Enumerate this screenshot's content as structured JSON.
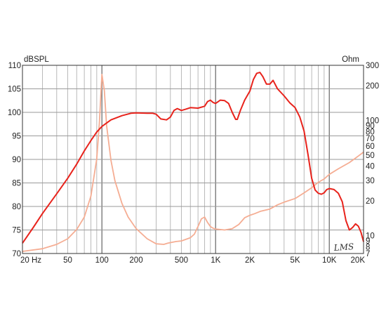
{
  "chart_data": {
    "type": "line",
    "x_scale": "log",
    "xlim": [
      20,
      20000
    ],
    "x_ticks": [
      {
        "value": 20,
        "label": "20  Hz"
      },
      {
        "value": 50,
        "label": "50"
      },
      {
        "value": 100,
        "label": "100"
      },
      {
        "value": 200,
        "label": "200"
      },
      {
        "value": 500,
        "label": "500"
      },
      {
        "value": 1000,
        "label": "1K"
      },
      {
        "value": 2000,
        "label": "2K"
      },
      {
        "value": 5000,
        "label": "5K"
      },
      {
        "value": 10000,
        "label": "10K"
      },
      {
        "value": 20000,
        "label": "20K"
      }
    ],
    "left_axis": {
      "unit_label": "dBSPL",
      "ylim": [
        70,
        110
      ],
      "ticks": [
        70,
        75,
        80,
        85,
        90,
        95,
        100,
        105,
        110
      ]
    },
    "right_axis": {
      "unit_label": "Ohm",
      "scale": "log",
      "ylim": [
        7,
        300
      ],
      "ticks": [
        {
          "value": 7,
          "label": "7"
        },
        {
          "value": 8,
          "label": "8"
        },
        {
          "value": 9,
          "label": "9"
        },
        {
          "value": 10,
          "label": "10"
        },
        {
          "value": 20,
          "label": "20"
        },
        {
          "value": 30,
          "label": "30"
        },
        {
          "value": 40,
          "label": "40"
        },
        {
          "value": 50,
          "label": "50"
        },
        {
          "value": 60,
          "label": "60"
        },
        {
          "value": 70,
          "label": "70"
        },
        {
          "value": 80,
          "label": "80"
        },
        {
          "value": 90,
          "label": "90"
        },
        {
          "value": 100,
          "label": "100"
        },
        {
          "value": 200,
          "label": "200"
        },
        {
          "value": 300,
          "label": "300"
        }
      ]
    },
    "grid": true,
    "series": [
      {
        "axis": "left",
        "color": "#e8231c",
        "points": [
          [
            20,
            72.2
          ],
          [
            25,
            75.6
          ],
          [
            30,
            78.5
          ],
          [
            40,
            82.7
          ],
          [
            50,
            86.0
          ],
          [
            60,
            89.0
          ],
          [
            70,
            91.8
          ],
          [
            80,
            94.0
          ],
          [
            90,
            95.8
          ],
          [
            100,
            97.0
          ],
          [
            120,
            98.4
          ],
          [
            150,
            99.3
          ],
          [
            180,
            99.8
          ],
          [
            200,
            99.9
          ],
          [
            250,
            99.8
          ],
          [
            280,
            99.8
          ],
          [
            300,
            99.6
          ],
          [
            330,
            98.6
          ],
          [
            370,
            98.4
          ],
          [
            400,
            99.0
          ],
          [
            430,
            100.4
          ],
          [
            460,
            100.8
          ],
          [
            500,
            100.4
          ],
          [
            550,
            100.7
          ],
          [
            600,
            101.0
          ],
          [
            700,
            100.9
          ],
          [
            800,
            101.3
          ],
          [
            850,
            102.3
          ],
          [
            900,
            102.6
          ],
          [
            950,
            102.1
          ],
          [
            1000,
            101.9
          ],
          [
            1100,
            102.6
          ],
          [
            1200,
            102.5
          ],
          [
            1300,
            101.9
          ],
          [
            1400,
            100.0
          ],
          [
            1500,
            98.5
          ],
          [
            1550,
            98.5
          ],
          [
            1650,
            100.4
          ],
          [
            1800,
            102.6
          ],
          [
            2000,
            104.5
          ],
          [
            2150,
            107.0
          ],
          [
            2300,
            108.3
          ],
          [
            2450,
            108.5
          ],
          [
            2600,
            107.6
          ],
          [
            2800,
            106.0
          ],
          [
            3000,
            106.0
          ],
          [
            3200,
            106.8
          ],
          [
            3500,
            105.0
          ],
          [
            4000,
            103.5
          ],
          [
            4500,
            102.0
          ],
          [
            5000,
            101.0
          ],
          [
            5500,
            99.0
          ],
          [
            6000,
            96.0
          ],
          [
            6500,
            91.0
          ],
          [
            7000,
            86.0
          ],
          [
            7500,
            83.5
          ],
          [
            8000,
            82.8
          ],
          [
            8500,
            82.6
          ],
          [
            9000,
            82.9
          ],
          [
            9500,
            83.6
          ],
          [
            10000,
            83.8
          ],
          [
            11000,
            83.6
          ],
          [
            12000,
            82.8
          ],
          [
            13000,
            81.0
          ],
          [
            14000,
            77.0
          ],
          [
            15000,
            75.0
          ],
          [
            16000,
            75.5
          ],
          [
            17000,
            76.3
          ],
          [
            18000,
            75.8
          ],
          [
            19000,
            74.5
          ],
          [
            20000,
            72.5
          ]
        ]
      },
      {
        "axis": "right",
        "color": "#f5ad93",
        "points": [
          [
            20,
            7.3
          ],
          [
            30,
            7.7
          ],
          [
            40,
            8.4
          ],
          [
            50,
            9.4
          ],
          [
            60,
            11.3
          ],
          [
            70,
            14.5
          ],
          [
            80,
            22.0
          ],
          [
            90,
            46.0
          ],
          [
            95,
            95.0
          ],
          [
            100,
            250.0
          ],
          [
            105,
            180.0
          ],
          [
            110,
            90.0
          ],
          [
            120,
            45.0
          ],
          [
            130,
            30.0
          ],
          [
            150,
            19.0
          ],
          [
            170,
            14.5
          ],
          [
            200,
            11.5
          ],
          [
            250,
            9.4
          ],
          [
            300,
            8.5
          ],
          [
            350,
            8.4
          ],
          [
            380,
            8.6
          ],
          [
            400,
            8.7
          ],
          [
            450,
            8.9
          ],
          [
            500,
            9.0
          ],
          [
            600,
            9.6
          ],
          [
            650,
            10.3
          ],
          [
            700,
            12.0
          ],
          [
            750,
            14.0
          ],
          [
            800,
            14.5
          ],
          [
            850,
            13.0
          ],
          [
            900,
            12.0
          ],
          [
            950,
            11.6
          ],
          [
            1000,
            11.4
          ],
          [
            1200,
            11.2
          ],
          [
            1400,
            11.5
          ],
          [
            1600,
            12.5
          ],
          [
            1800,
            14.3
          ],
          [
            2000,
            15.0
          ],
          [
            2200,
            15.5
          ],
          [
            2500,
            16.3
          ],
          [
            3000,
            17.0
          ],
          [
            3500,
            18.5
          ],
          [
            4000,
            19.5
          ],
          [
            5000,
            21.0
          ],
          [
            6000,
            23.5
          ],
          [
            7000,
            26.0
          ],
          [
            8000,
            29.0
          ],
          [
            9000,
            31.0
          ],
          [
            10000,
            34.0
          ],
          [
            12000,
            38.0
          ],
          [
            15000,
            43.0
          ],
          [
            18000,
            49.0
          ],
          [
            20000,
            53.0
          ]
        ]
      }
    ]
  },
  "logo_text": "LMS"
}
